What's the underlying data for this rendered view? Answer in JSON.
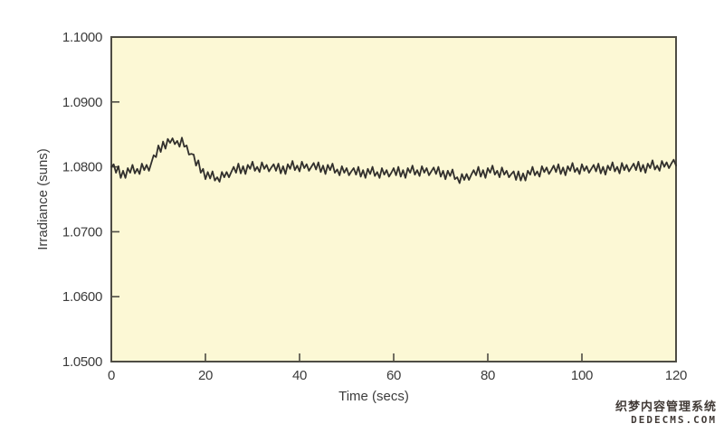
{
  "watermark": {
    "line1": "织梦内容管理系统",
    "line2": "DEDECMS.COM"
  },
  "chart_data": {
    "type": "line",
    "title": "",
    "xlabel": "Time (secs)",
    "ylabel": "Irradiance (suns)",
    "xlim": [
      0,
      120
    ],
    "ylim": [
      1.05,
      1.1
    ],
    "xticks": [
      0,
      20,
      40,
      60,
      80,
      100,
      120
    ],
    "yticks": [
      {
        "v": 1.05,
        "label": "1.0500"
      },
      {
        "v": 1.06,
        "label": "1.0600"
      },
      {
        "v": 1.07,
        "label": "1.0700"
      },
      {
        "v": 1.08,
        "label": "1.0800"
      },
      {
        "v": 1.09,
        "label": "1.0900"
      },
      {
        "v": 1.1,
        "label": "1.1000"
      }
    ],
    "grid": false,
    "legend": null,
    "plot_bg_color": "#fcf8d5",
    "frame_color": "#4e4c44",
    "tick_text_color": "#3c3c3c",
    "line_color": "#32302d",
    "series": [
      {
        "name": "irradiance",
        "x_start": 0,
        "x_step": 0.5,
        "value_offset": 1.0,
        "value_scale": 0.0001,
        "values_scaled": [
          800,
          804,
          791,
          801,
          783,
          794,
          783,
          798,
          791,
          803,
          790,
          797,
          789,
          805,
          795,
          803,
          794,
          806,
          818,
          815,
          833,
          823,
          839,
          828,
          843,
          837,
          844,
          835,
          840,
          831,
          845,
          831,
          833,
          819,
          820,
          819,
          802,
          810,
          791,
          797,
          781,
          792,
          782,
          793,
          779,
          784,
          777,
          792,
          784,
          792,
          784,
          792,
          800,
          791,
          805,
          790,
          801,
          789,
          803,
          797,
          808,
          794,
          800,
          792,
          807,
          797,
          803,
          793,
          799,
          804,
          794,
          805,
          790,
          801,
          789,
          804,
          797,
          809,
          795,
          802,
          793,
          808,
          798,
          804,
          794,
          800,
          806,
          796,
          807,
          792,
          802,
          789,
          803,
          795,
          805,
          791,
          796,
          787,
          801,
          791,
          798,
          787,
          793,
          798,
          788,
          800,
          785,
          795,
          783,
          797,
          789,
          800,
          786,
          792,
          783,
          798,
          788,
          795,
          785,
          791,
          798,
          787,
          800,
          785,
          795,
          783,
          798,
          791,
          802,
          788,
          795,
          786,
          801,
          791,
          798,
          787,
          793,
          799,
          789,
          800,
          785,
          794,
          781,
          794,
          786,
          796,
          781,
          784,
          775,
          789,
          780,
          789,
          780,
          788,
          795,
          787,
          800,
          785,
          795,
          783,
          798,
          791,
          802,
          788,
          794,
          784,
          799,
          788,
          794,
          784,
          789,
          793,
          780,
          793,
          779,
          790,
          779,
          794,
          788,
          800,
          787,
          793,
          785,
          801,
          792,
          799,
          789,
          795,
          802,
          792,
          804,
          789,
          799,
          787,
          801,
          794,
          806,
          792,
          798,
          789,
          804,
          794,
          801,
          791,
          797,
          803,
          793,
          805,
          790,
          800,
          788,
          802,
          795,
          807,
          793,
          800,
          790,
          806,
          795,
          803,
          793,
          799,
          805,
          795,
          808,
          793,
          803,
          791,
          805,
          798,
          810,
          796,
          802,
          794,
          809,
          800,
          807,
          798,
          805,
          811,
          802
        ]
      }
    ]
  }
}
